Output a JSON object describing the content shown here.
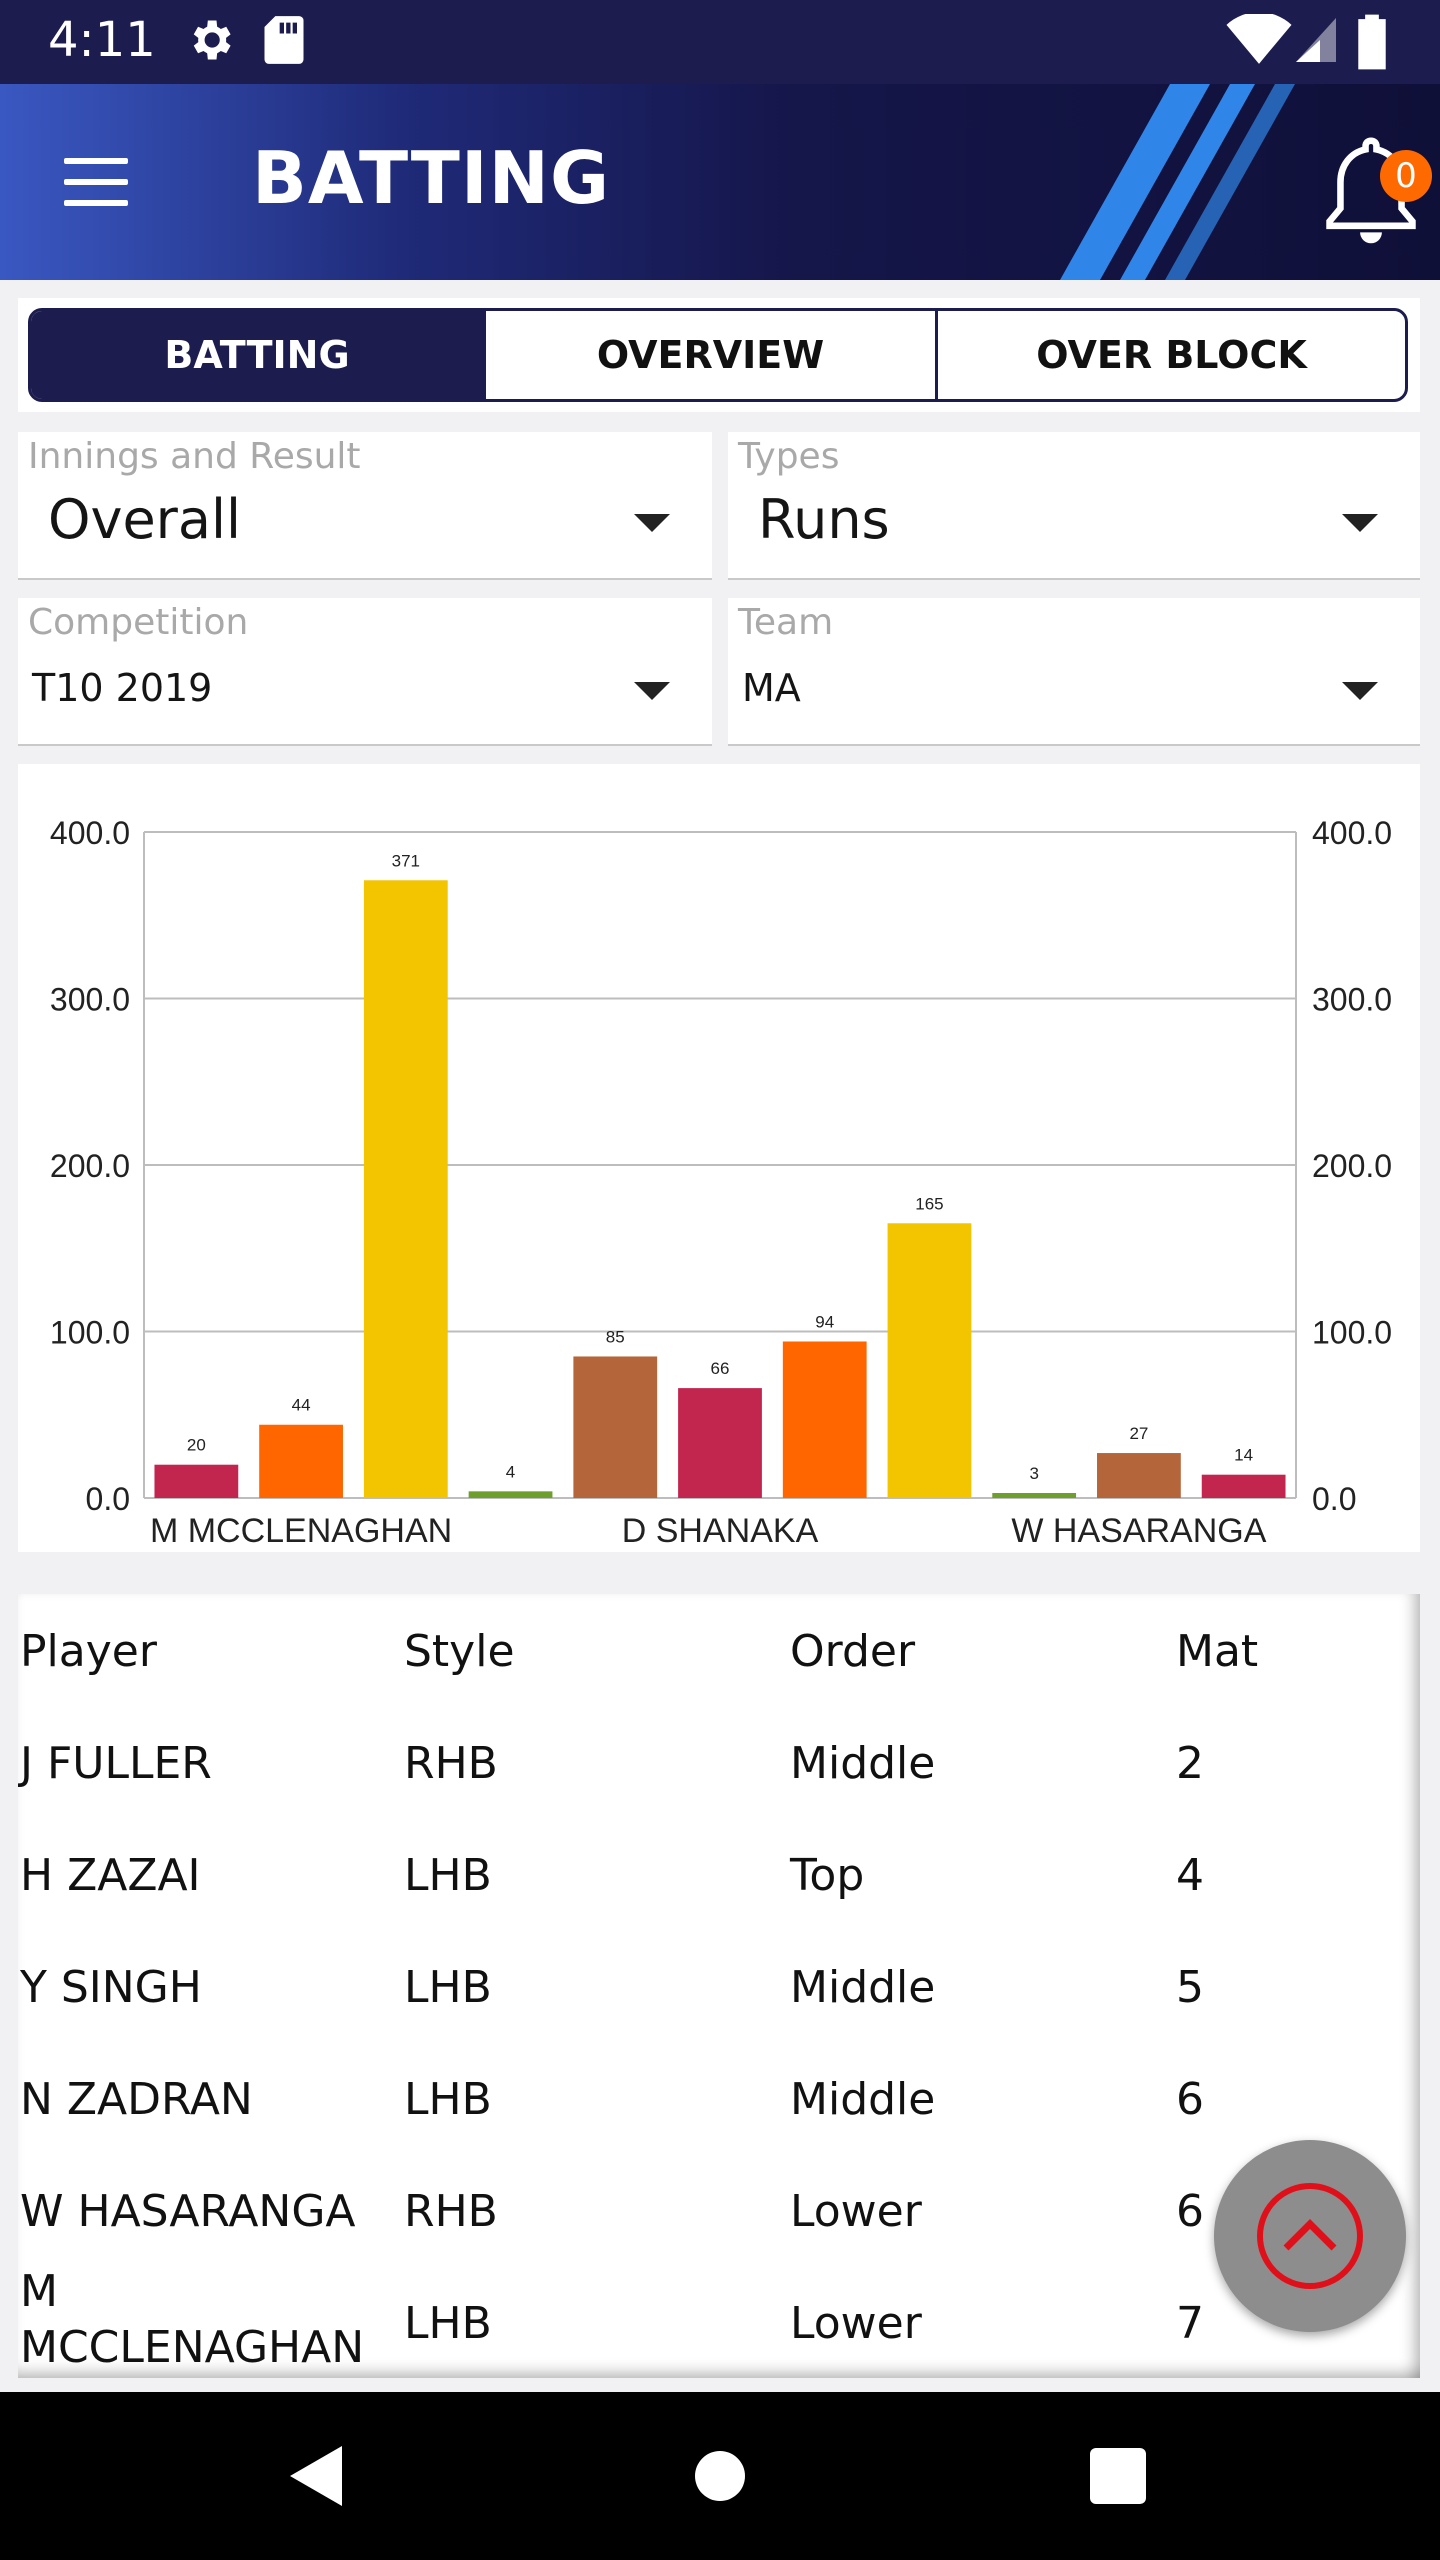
{
  "status_bar": {
    "time": "4:11",
    "icons": [
      "gear-icon",
      "sd-card-icon",
      "wifi-icon",
      "signal-icon",
      "battery-icon"
    ]
  },
  "app_bar": {
    "title": "BATTING",
    "notification_count": "0"
  },
  "tabs": [
    {
      "label": "BATTING",
      "active": true
    },
    {
      "label": "OVERVIEW",
      "active": false
    },
    {
      "label": "OVER BLOCK",
      "active": false
    }
  ],
  "filters": {
    "innings": {
      "label": "Innings and Result",
      "value": "Overall"
    },
    "types": {
      "label": "Types",
      "value": "Runs"
    },
    "competition": {
      "label": "Competition",
      "value": "T10 2019"
    },
    "team": {
      "label": "Team",
      "value": "MA"
    }
  },
  "chart_data": {
    "type": "bar",
    "categories": [
      "M MCCLENAGHAN",
      "D SHANAKA",
      "W HASARANGA"
    ],
    "bars": [
      {
        "value": 20,
        "color": "#c2254e",
        "label": "20"
      },
      {
        "value": 44,
        "color": "#ff6600",
        "label": "44"
      },
      {
        "value": 371,
        "color": "#f3c400",
        "label": "371"
      },
      {
        "value": 4,
        "color": "#6e9e2c",
        "label": "4"
      },
      {
        "value": 85,
        "color": "#b5653a",
        "label": "85"
      },
      {
        "value": 66,
        "color": "#c2254e",
        "label": "66"
      },
      {
        "value": 94,
        "color": "#ff6600",
        "label": "94"
      },
      {
        "value": 165,
        "color": "#f3c400",
        "label": "165"
      },
      {
        "value": 3,
        "color": "#6e9e2c",
        "label": "3"
      },
      {
        "value": 27,
        "color": "#b5653a",
        "label": "27"
      },
      {
        "value": 14,
        "color": "#c2254e",
        "label": "14"
      }
    ],
    "y_ticks": [
      "0.0",
      "100.0",
      "200.0",
      "300.0",
      "400.0"
    ],
    "ylim": [
      0,
      400
    ],
    "grid": true,
    "dual_axis": true
  },
  "table": {
    "headers": [
      "Player",
      "Style",
      "Order",
      "Mat"
    ],
    "rows": [
      [
        "J FULLER",
        "RHB",
        "Middle",
        "2"
      ],
      [
        "H ZAZAI",
        "LHB",
        "Top",
        "4"
      ],
      [
        "Y SINGH",
        "LHB",
        "Middle",
        "5"
      ],
      [
        "N ZADRAN",
        "LHB",
        "Middle",
        "6"
      ],
      [
        "W HASARANGA",
        "RHB",
        "Lower",
        "6"
      ],
      [
        "M MCCLENAGHAN",
        "LHB",
        "Lower",
        "7"
      ]
    ]
  },
  "colors": {
    "primary": "#1d1c4f",
    "badge": "#ff6a00",
    "fab_arrow": "#e0101a"
  }
}
